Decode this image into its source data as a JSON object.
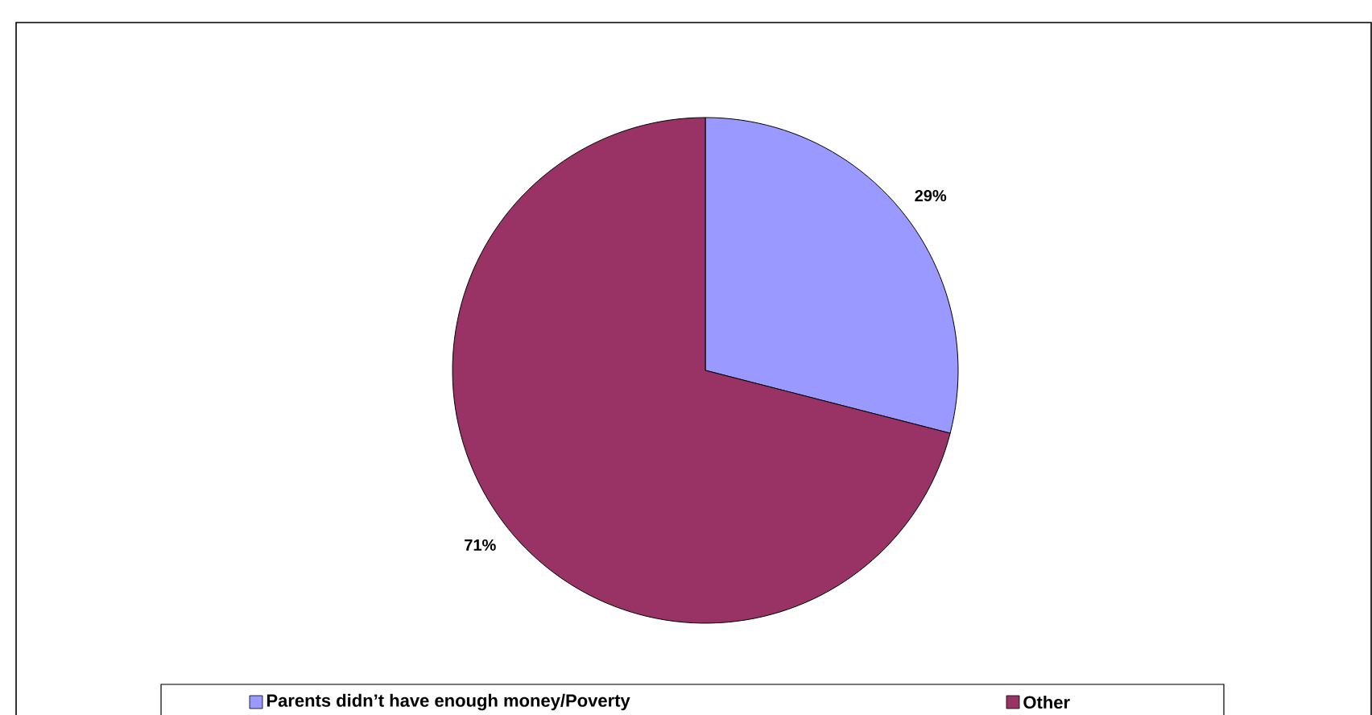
{
  "chart_data": {
    "type": "pie",
    "categories": [
      "Parents didn’t have enough money/Poverty",
      "Other"
    ],
    "values": [
      29,
      71
    ],
    "value_labels": [
      "29%",
      "71%"
    ],
    "colors": [
      "#9999ff",
      "#993366"
    ],
    "legend": "bottom"
  }
}
